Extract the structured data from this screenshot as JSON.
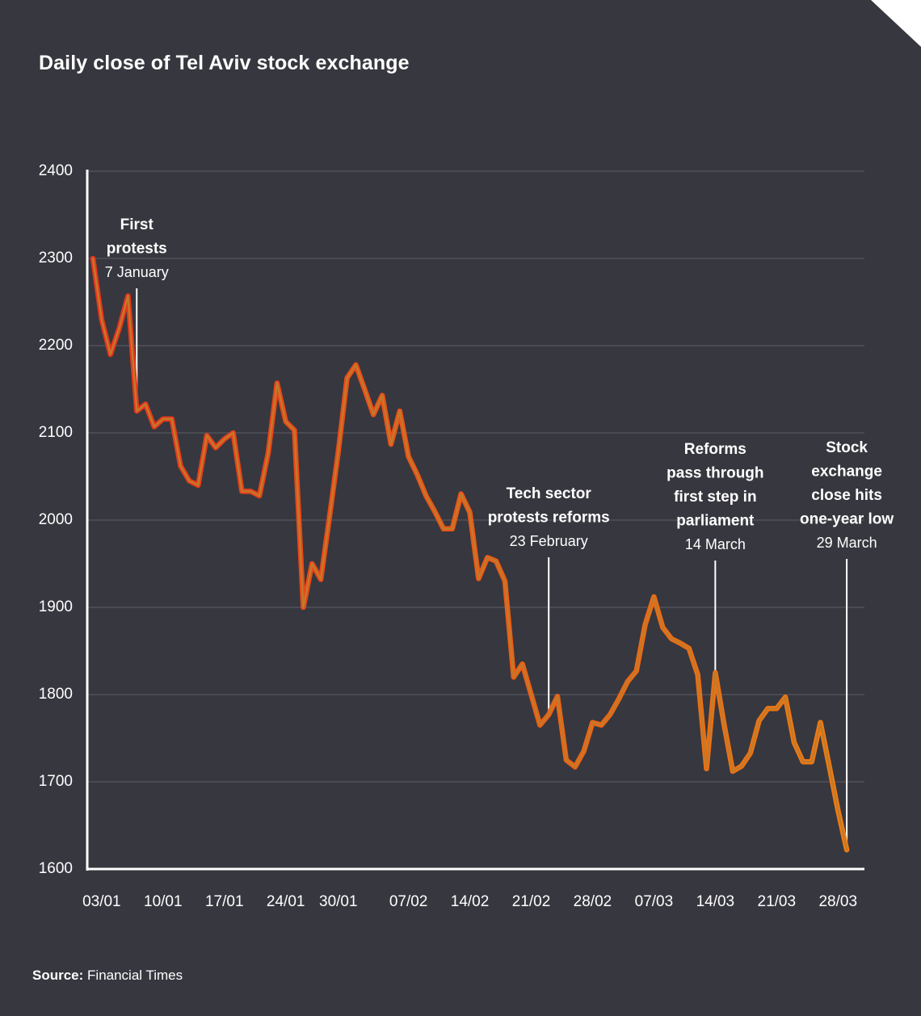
{
  "chart_data": {
    "type": "line",
    "title": "Daily close of Tel Aviv stock exchange",
    "source_label": "Source:",
    "source_text": "Financial Times",
    "ylim": [
      1600,
      2400
    ],
    "y_ticks": [
      2400,
      2300,
      2200,
      2100,
      2000,
      1900,
      1800,
      1700,
      1600
    ],
    "x_ticks": [
      "03/01",
      "10/01",
      "17/01",
      "24/01",
      "30/01",
      "07/02",
      "14/02",
      "21/02",
      "28/02",
      "07/03",
      "14/03",
      "21/03",
      "28/03"
    ],
    "grid": true,
    "colors": {
      "background": "#37373f",
      "line_start": "#e8331c",
      "line_end": "#f07c10",
      "line_fill": "#c17a2a",
      "grid": "#55555d",
      "axis": "#ffffff"
    },
    "series": [
      {
        "x": [
          "02/01",
          "03/01",
          "04/01",
          "05/01",
          "06/01",
          "07/01",
          "08/01",
          "09/01",
          "10/01",
          "11/01",
          "12/01",
          "13/01",
          "14/01",
          "15/01",
          "16/01",
          "17/01",
          "18/01",
          "19/01",
          "20/01",
          "21/01",
          "22/01",
          "23/01",
          "24/01",
          "25/01",
          "26/01",
          "27/01",
          "28/01",
          "29/01",
          "30/01",
          "31/01",
          "01/02",
          "02/02",
          "03/02",
          "04/02",
          "05/02",
          "06/02",
          "07/02",
          "08/02",
          "09/02",
          "10/02",
          "11/02",
          "12/02",
          "13/02",
          "14/02",
          "15/02",
          "16/02",
          "17/02",
          "18/02",
          "19/02",
          "20/02",
          "21/02",
          "22/02",
          "23/02",
          "24/02",
          "25/02",
          "26/02",
          "27/02",
          "28/02",
          "01/03",
          "02/03",
          "03/03",
          "04/03",
          "05/03",
          "06/03",
          "07/03",
          "08/03",
          "09/03",
          "10/03",
          "11/03",
          "12/03",
          "13/03",
          "14/03",
          "15/03",
          "16/03",
          "17/03",
          "18/03",
          "19/03",
          "20/03",
          "21/03",
          "22/03",
          "23/03",
          "24/03",
          "25/03",
          "26/03",
          "27/03",
          "28/03",
          "29/03"
        ],
        "values": [
          2300,
          2230,
          2190,
          2220,
          2257,
          2125,
          2133,
          2107,
          2116,
          2116,
          2062,
          2045,
          2040,
          2097,
          2083,
          2093,
          2100,
          2033,
          2033,
          2028,
          2077,
          2157,
          2113,
          2103,
          1900,
          1950,
          1932,
          2004,
          2079,
          2163,
          2178,
          2150,
          2121,
          2143,
          2087,
          2125,
          2073,
          2052,
          2028,
          2010,
          1990,
          1990,
          2030,
          2009,
          1933,
          1957,
          1953,
          1930,
          1820,
          1835,
          1800,
          1765,
          1777,
          1798,
          1725,
          1717,
          1735,
          1768,
          1765,
          1777,
          1795,
          1815,
          1827,
          1880,
          1912,
          1877,
          1864,
          1859,
          1853,
          1823,
          1715,
          1825,
          1766,
          1712,
          1718,
          1733,
          1770,
          1784,
          1784,
          1797,
          1745,
          1723,
          1723,
          1768,
          1718,
          1667,
          1622
        ]
      }
    ],
    "annotations": [
      {
        "x": "07/01",
        "lines": [
          "First",
          "protests"
        ],
        "date": "7 January"
      },
      {
        "x": "23/02",
        "lines": [
          "Tech sector",
          "protests reforms"
        ],
        "date": "23 February"
      },
      {
        "x": "14/03",
        "lines": [
          "Reforms",
          "pass through",
          "first step in",
          "parliament"
        ],
        "date": "14 March"
      },
      {
        "x": "29/03",
        "lines": [
          "Stock",
          "exchange",
          "close hits",
          "one-year low"
        ],
        "date": "29 March"
      }
    ]
  }
}
